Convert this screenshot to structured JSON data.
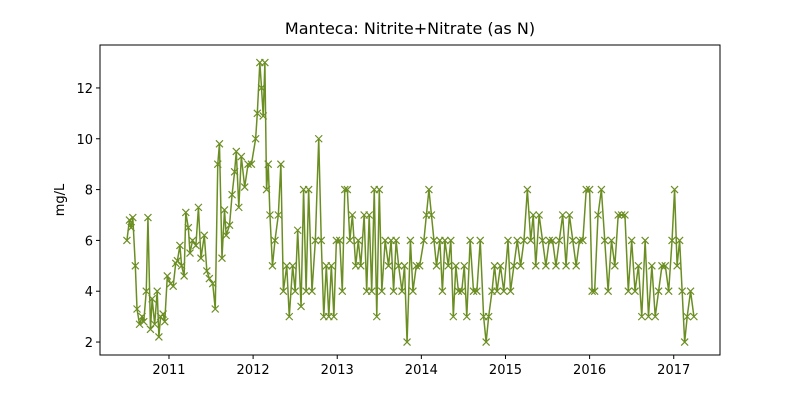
{
  "chart_data": {
    "type": "line",
    "title": "Manteca: Nitrite+Nitrate (as N)",
    "ylabel": "mg/L",
    "color": "#6b8e23",
    "marker": "x",
    "xlim": [
      2010.18,
      2017.55
    ],
    "ylim": [
      1.49,
      13.69
    ],
    "xticks": [
      2011,
      2012,
      2013,
      2014,
      2015,
      2016,
      2017
    ],
    "yticks": [
      2,
      4,
      6,
      8,
      10,
      12
    ],
    "x": [
      2010.5,
      2010.53,
      2010.55,
      2010.57,
      2010.6,
      2010.62,
      2010.65,
      2010.68,
      2010.7,
      2010.73,
      2010.75,
      2010.78,
      2010.8,
      2010.83,
      2010.86,
      2010.88,
      2010.9,
      2010.93,
      2010.95,
      2010.98,
      2011.02,
      2011.05,
      2011.08,
      2011.1,
      2011.13,
      2011.15,
      2011.18,
      2011.2,
      2011.23,
      2011.25,
      2011.28,
      2011.32,
      2011.35,
      2011.38,
      2011.42,
      2011.45,
      2011.48,
      2011.52,
      2011.55,
      2011.58,
      2011.6,
      2011.63,
      2011.66,
      2011.68,
      2011.72,
      2011.75,
      2011.78,
      2011.8,
      2011.83,
      2011.86,
      2011.9,
      2011.94,
      2011.98,
      2012.03,
      2012.05,
      2012.08,
      2012.1,
      2012.12,
      2012.14,
      2012.16,
      2012.18,
      2012.2,
      2012.23,
      2012.26,
      2012.3,
      2012.33,
      2012.36,
      2012.4,
      2012.43,
      2012.47,
      2012.5,
      2012.53,
      2012.57,
      2012.6,
      2012.63,
      2012.66,
      2012.7,
      2012.74,
      2012.78,
      2012.81,
      2012.84,
      2012.87,
      2012.9,
      2012.93,
      2012.96,
      2012.99,
      2013.03,
      2013.06,
      2013.09,
      2013.12,
      2013.15,
      2013.18,
      2013.22,
      2013.25,
      2013.28,
      2013.32,
      2013.35,
      2013.38,
      2013.41,
      2013.44,
      2013.47,
      2013.5,
      2013.53,
      2013.57,
      2013.61,
      2013.64,
      2013.67,
      2013.7,
      2013.73,
      2013.77,
      2013.8,
      2013.83,
      2013.87,
      2013.9,
      2013.94,
      2013.98,
      2014.03,
      2014.06,
      2014.09,
      2014.12,
      2014.15,
      2014.18,
      2014.22,
      2014.25,
      2014.28,
      2014.32,
      2014.35,
      2014.38,
      2014.41,
      2014.44,
      2014.48,
      2014.51,
      2014.54,
      2014.58,
      2014.62,
      2014.66,
      2014.7,
      2014.74,
      2014.77,
      2014.8,
      2014.84,
      2014.87,
      2014.9,
      2014.94,
      2014.98,
      2015.03,
      2015.06,
      2015.1,
      2015.14,
      2015.18,
      2015.22,
      2015.26,
      2015.3,
      2015.33,
      2015.36,
      2015.4,
      2015.44,
      2015.48,
      2015.52,
      2015.56,
      2015.6,
      2015.64,
      2015.68,
      2015.72,
      2015.76,
      2015.8,
      2015.84,
      2015.88,
      2015.92,
      2015.96,
      2016.0,
      2016.03,
      2016.06,
      2016.1,
      2016.14,
      2016.18,
      2016.22,
      2016.26,
      2016.3,
      2016.34,
      2016.38,
      2016.42,
      2016.46,
      2016.5,
      2016.54,
      2016.58,
      2016.62,
      2016.66,
      2016.7,
      2016.74,
      2016.78,
      2016.82,
      2016.86,
      2016.9,
      2016.94,
      2016.98,
      2017.01,
      2017.04,
      2017.07,
      2017.1,
      2017.13,
      2017.16,
      2017.2,
      2017.24
    ],
    "values": [
      6.0,
      6.8,
      6.5,
      6.9,
      5.0,
      3.3,
      2.7,
      3.0,
      2.8,
      4.0,
      6.9,
      2.5,
      3.7,
      2.7,
      4.0,
      2.2,
      3.0,
      3.1,
      2.8,
      4.6,
      4.3,
      4.2,
      5.1,
      5.2,
      5.8,
      5.0,
      4.6,
      7.1,
      6.5,
      5.5,
      6.0,
      5.8,
      7.3,
      5.3,
      6.2,
      4.8,
      4.5,
      4.3,
      3.3,
      9.0,
      9.8,
      5.3,
      7.2,
      6.2,
      6.6,
      7.8,
      8.7,
      9.5,
      7.3,
      9.3,
      8.1,
      9.0,
      9.0,
      10.0,
      11.0,
      13.0,
      12.0,
      10.9,
      13.0,
      8.0,
      9.0,
      7.0,
      5.0,
      6.0,
      7.0,
      9.0,
      4.0,
      5.0,
      3.0,
      5.0,
      4.0,
      6.4,
      3.4,
      8.0,
      4.0,
      8.0,
      4.0,
      6.0,
      10.0,
      6.0,
      3.0,
      5.0,
      3.0,
      5.0,
      3.0,
      6.0,
      6.0,
      4.0,
      8.0,
      8.0,
      6.0,
      7.0,
      5.0,
      6.0,
      5.0,
      7.0,
      4.0,
      7.0,
      4.0,
      8.0,
      3.0,
      8.0,
      4.0,
      6.0,
      5.0,
      6.0,
      4.0,
      6.0,
      5.0,
      4.0,
      5.0,
      2.0,
      6.0,
      4.0,
      5.0,
      5.0,
      6.0,
      7.0,
      8.0,
      7.0,
      6.0,
      5.0,
      6.0,
      4.0,
      6.0,
      5.0,
      6.0,
      3.0,
      5.0,
      4.0,
      4.0,
      5.0,
      3.0,
      6.0,
      4.0,
      4.0,
      6.0,
      3.0,
      2.0,
      3.0,
      4.0,
      5.0,
      4.0,
      5.0,
      4.0,
      6.0,
      4.0,
      5.0,
      6.0,
      5.0,
      6.0,
      8.0,
      6.0,
      7.0,
      5.0,
      7.0,
      6.0,
      5.0,
      6.0,
      6.0,
      5.0,
      6.0,
      7.0,
      5.0,
      7.0,
      6.0,
      5.0,
      6.0,
      6.0,
      8.0,
      8.0,
      4.0,
      4.0,
      7.0,
      8.0,
      6.0,
      4.0,
      6.0,
      5.0,
      7.0,
      7.0,
      7.0,
      4.0,
      6.0,
      4.0,
      5.0,
      3.0,
      6.0,
      3.0,
      5.0,
      3.0,
      4.0,
      5.0,
      5.0,
      4.0,
      6.0,
      8.0,
      5.0,
      6.0,
      4.0,
      2.0,
      3.0,
      4.0,
      3.0
    ]
  }
}
